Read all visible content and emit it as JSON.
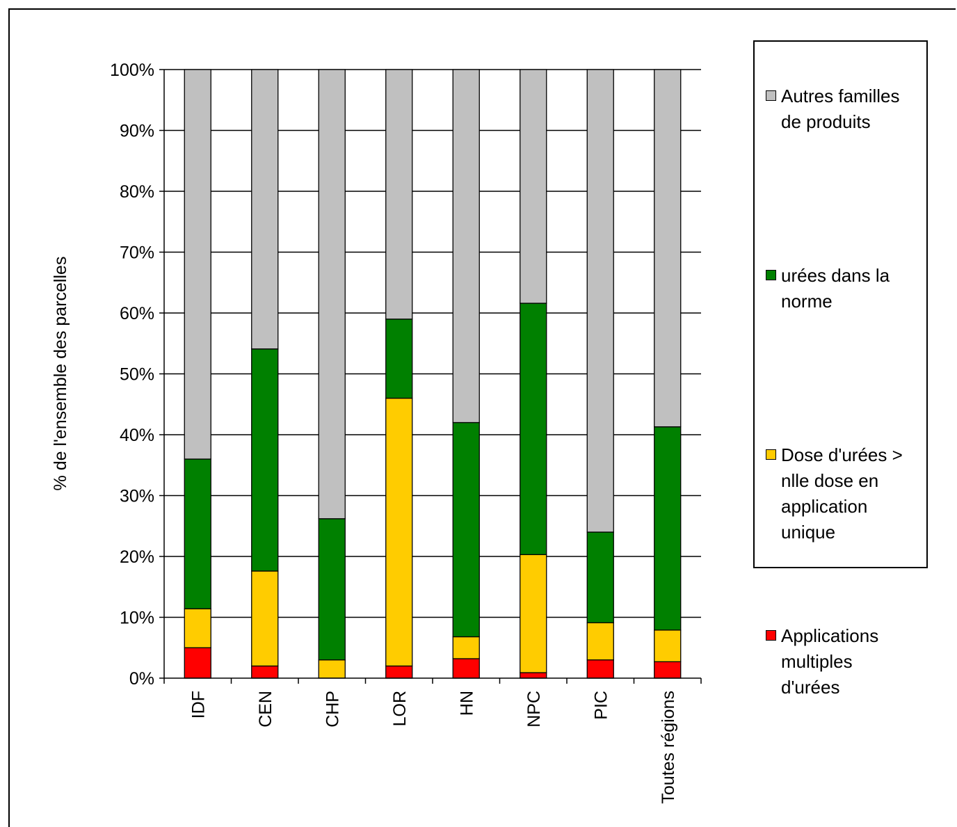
{
  "chart_data": {
    "type": "bar",
    "stacked": true,
    "ylabel": "% de l'ensemble des parcelles",
    "xlabel": "",
    "ylim": [
      0,
      100
    ],
    "ytick_step": 10,
    "ytick_labels": [
      "0%",
      "10%",
      "20%",
      "30%",
      "40%",
      "50%",
      "60%",
      "70%",
      "80%",
      "90%",
      "100%"
    ],
    "grid": true,
    "legend_position": "right",
    "categories": [
      "IDF",
      "CEN",
      "CHP",
      "LOR",
      "HN",
      "NPC",
      "PIC",
      "Toutes régions"
    ],
    "series": [
      {
        "name": "Applications multiples d'urées",
        "color": "#ff0000",
        "values": [
          5,
          2,
          0,
          2,
          3.2,
          0.9,
          3,
          2.7
        ]
      },
      {
        "name": "Dose d'urées > nlle dose en application unique",
        "color": "#ffcc00",
        "values": [
          6.4,
          15.6,
          3,
          44,
          3.6,
          19.4,
          6.1,
          5.2
        ]
      },
      {
        "name": "urées dans la norme",
        "color": "#008000",
        "values": [
          24.6,
          36.5,
          23.2,
          13,
          35.2,
          41.3,
          14.9,
          33.4
        ]
      },
      {
        "name": "Autres familles de produits",
        "color": "#c0c0c0",
        "values": [
          64,
          45.9,
          73.8,
          41,
          58,
          38.4,
          76,
          58.7
        ]
      }
    ]
  },
  "legend": {
    "items": [
      {
        "label": "Autres familles\nde produits",
        "color": "#c0c0c0"
      },
      {
        "label": "urées dans la\nnorme",
        "color": "#008000"
      },
      {
        "label": "Dose d'urées >\nnlle dose en\napplication\nunique",
        "color": "#ffcc00"
      },
      {
        "label": "Applications\nmultiples\nd'urées",
        "color": "#ff0000"
      }
    ]
  }
}
